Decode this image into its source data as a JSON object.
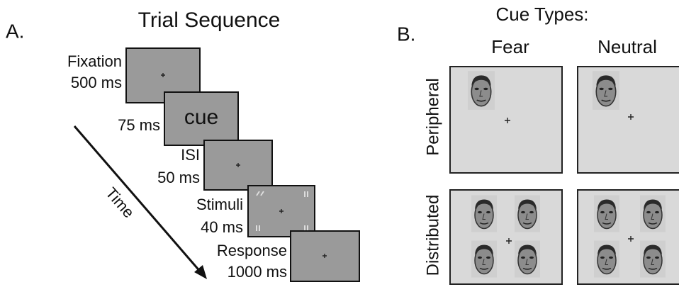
{
  "panel_a": {
    "label": "A.",
    "title": "Trial Sequence",
    "steps": [
      {
        "name": "Fixation",
        "duration": "500 ms"
      },
      {
        "duration": "75 ms",
        "screen_text": "cue"
      },
      {
        "name": "ISI",
        "duration": "50 ms"
      },
      {
        "name": "Stimuli",
        "duration": "40 ms"
      },
      {
        "name": "Response",
        "duration": "1000 ms"
      }
    ],
    "time_label": "Time"
  },
  "panel_b": {
    "label": "B.",
    "title": "Cue Types:",
    "columns": [
      "Fear",
      "Neutral"
    ],
    "rows": [
      "Peripheral",
      "Distributed"
    ]
  }
}
